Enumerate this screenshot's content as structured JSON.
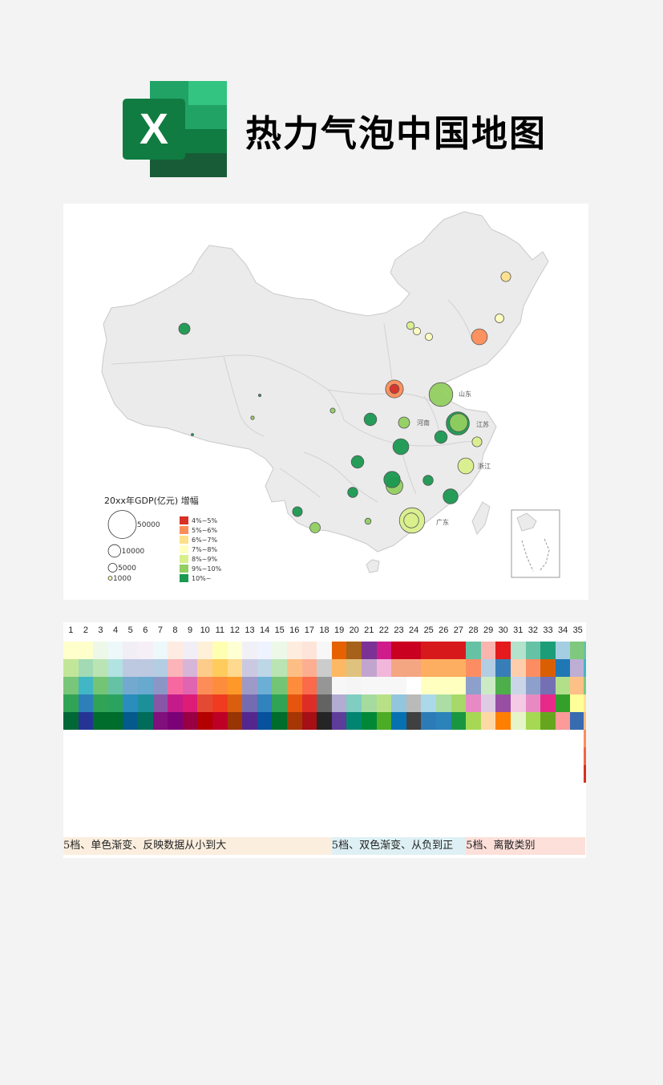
{
  "header": {
    "logo_letter": "X",
    "title": "热力气泡中国地图"
  },
  "map": {
    "legend_title": "20xx年GDP(亿元) 增幅",
    "size_legend": [
      {
        "label": "50000",
        "value": 50000
      },
      {
        "label": "10000",
        "value": 10000
      },
      {
        "label": "5000",
        "value": 5000
      },
      {
        "label": "1000",
        "value": 1000
      }
    ],
    "color_legend": [
      {
        "label": "4%~5%",
        "color": "#d73027"
      },
      {
        "label": "5%~6%",
        "color": "#fc8d59"
      },
      {
        "label": "6%~7%",
        "color": "#fee08b"
      },
      {
        "label": "7%~8%",
        "color": "#ffffbf"
      },
      {
        "label": "8%~9%",
        "color": "#d9ef8b"
      },
      {
        "label": "9%~10%",
        "color": "#91cf60"
      },
      {
        "label": "10%~",
        "color": "#1a9850"
      }
    ],
    "province_labels": [
      "山东",
      "江苏",
      "河南",
      "浙江",
      "广东"
    ],
    "bubbles": [
      {
        "bin": 1,
        "gdp": 20000
      },
      {
        "bin": 1,
        "gdp": 16000
      },
      {
        "bin": 2,
        "gdp": 6000
      },
      {
        "bin": 3,
        "gdp": 3500
      },
      {
        "bin": 3,
        "gdp": 3500
      },
      {
        "bin": 3,
        "gdp": 5000
      },
      {
        "bin": 4,
        "gdp": 3700
      },
      {
        "bin": 4,
        "gdp": 16000
      },
      {
        "bin": 4,
        "gdp": 14000
      },
      {
        "bin": 4,
        "gdp": 6000
      },
      {
        "bin": 4,
        "gdp": 41000
      },
      {
        "bin": 5,
        "gdp": 36000
      },
      {
        "bin": 5,
        "gdp": 8000
      },
      {
        "bin": 5,
        "gdp": 21000
      },
      {
        "bin": 5,
        "gdp": 18000
      },
      {
        "bin": 5,
        "gdp": 1600
      },
      {
        "bin": 5,
        "gdp": 800
      },
      {
        "bin": 5,
        "gdp": 7000
      },
      {
        "bin": 5,
        "gdp": 2400
      },
      {
        "bin": 6,
        "gdp": 34000
      },
      {
        "bin": 6,
        "gdp": 10000
      },
      {
        "bin": 6,
        "gdp": 16000
      },
      {
        "bin": 6,
        "gdp": 17000
      },
      {
        "bin": 6,
        "gdp": 14000
      },
      {
        "bin": 6,
        "gdp": 10000
      },
      {
        "bin": 6,
        "gdp": 6500
      },
      {
        "bin": 6,
        "gdp": 10000
      },
      {
        "bin": 6,
        "gdp": 400
      },
      {
        "bin": 0,
        "gdp": 5500
      },
      {
        "bin": 6,
        "gdp": 8000
      },
      {
        "bin": 6,
        "gdp": 6500
      },
      {
        "bin": 6,
        "gdp": 6000
      },
      {
        "bin": 6,
        "gdp": 200
      }
    ]
  },
  "palette": {
    "column_numbers": [
      "1",
      "2",
      "3",
      "4",
      "5",
      "6",
      "7",
      "8",
      "9",
      "10",
      "11",
      "12",
      "13",
      "14",
      "15",
      "16",
      "17",
      "18",
      "19",
      "20",
      "21",
      "22",
      "23",
      "24",
      "25",
      "26",
      "27",
      "28",
      "29",
      "30",
      "31",
      "32",
      "33",
      "34",
      "35"
    ],
    "columns": [
      [
        "#ffffcc",
        "#c2e699",
        "#78c679",
        "#31a354",
        "#006837"
      ],
      [
        "#ffffcc",
        "#a1dab4",
        "#41b6c4",
        "#2c7fb8",
        "#253494"
      ],
      [
        "#edf8e9",
        "#bae4b3",
        "#74c476",
        "#31a354",
        "#006d2c"
      ],
      [
        "#edf8fb",
        "#b2e2e2",
        "#66c2a4",
        "#2ca25f",
        "#006d2c"
      ],
      [
        "#f1eef6",
        "#bdc9e1",
        "#74a9cf",
        "#2b8cbe",
        "#045a8d"
      ],
      [
        "#f6eff7",
        "#bdc9e1",
        "#67a9cf",
        "#1c9099",
        "#016c59"
      ],
      [
        "#edf8fb",
        "#b3cde3",
        "#8c96c6",
        "#8856a7",
        "#810f7c"
      ],
      [
        "#feebe2",
        "#fbb4b9",
        "#f768a1",
        "#c51b8a",
        "#7a0177"
      ],
      [
        "#f1eef6",
        "#d7b5d8",
        "#df65b0",
        "#dd1c77",
        "#980043"
      ],
      [
        "#fef0d9",
        "#fdcc8a",
        "#fc8d59",
        "#e34a33",
        "#b30000"
      ],
      [
        "#ffffb2",
        "#fecc5c",
        "#fd8d3c",
        "#f03b20",
        "#bd0026"
      ],
      [
        "#ffffd4",
        "#fed98e",
        "#fe9929",
        "#d95f0e",
        "#993404"
      ],
      [
        "#f2f0f7",
        "#cbc9e2",
        "#9e9ac8",
        "#756bb1",
        "#54278f"
      ],
      [
        "#eff3ff",
        "#bdd7e7",
        "#6baed6",
        "#3182bd",
        "#08519c"
      ],
      [
        "#edf8e9",
        "#bae4b3",
        "#74c476",
        "#31a354",
        "#006d2c"
      ],
      [
        "#feedde",
        "#fdbe85",
        "#fd8d3c",
        "#e6550d",
        "#a63603"
      ],
      [
        "#fee5d9",
        "#fcae91",
        "#fb6a4a",
        "#de2d26",
        "#a50f15"
      ],
      [
        "#f7f7f7",
        "#cccccc",
        "#969696",
        "#636363",
        "#252525"
      ],
      [
        "#e66101",
        "#fdb863",
        "#f7f7f7",
        "#b2abd2",
        "#5e3c99"
      ],
      [
        "#a6611a",
        "#dfc27d",
        "#f5f5f5",
        "#80cdc1",
        "#018571"
      ],
      [
        "#7b3294",
        "#c2a5cf",
        "#f7f7f7",
        "#a6dba0",
        "#008837"
      ],
      [
        "#d01c8b",
        "#f1b6da",
        "#f7f7f7",
        "#b8e186",
        "#4dac26"
      ],
      [
        "#ca0020",
        "#f4a582",
        "#f7f7f7",
        "#92c5de",
        "#0571b0"
      ],
      [
        "#ca0020",
        "#f4a582",
        "#ffffff",
        "#bababa",
        "#404040"
      ],
      [
        "#d7191c",
        "#fdae61",
        "#ffffbf",
        "#abd9e9",
        "#2c7bb6"
      ],
      [
        "#d7191c",
        "#fdae61",
        "#ffffbf",
        "#abdda4",
        "#2b83ba"
      ],
      [
        "#d7191c",
        "#fdae61",
        "#ffffbf",
        "#a6d96a",
        "#1a9641"
      ],
      [
        "#66c2a5",
        "#fc8d62",
        "#8da0cb",
        "#e78ac3",
        "#a6d854"
      ],
      [
        "#fbb4ae",
        "#b3cde3",
        "#ccebc5",
        "#decbe4",
        "#fed9a6"
      ],
      [
        "#e41a1c",
        "#377eb8",
        "#4daf4a",
        "#984ea3",
        "#ff7f00"
      ],
      [
        "#b3e2cd",
        "#fdcdac",
        "#cbd5e8",
        "#f4cae4",
        "#e6f5c9"
      ],
      [
        "#66c2a5",
        "#fc8d62",
        "#8da0cb",
        "#e78ac3",
        "#a6d854"
      ],
      [
        "#1b9e77",
        "#d95f02",
        "#7570b3",
        "#e7298a",
        "#66a61e"
      ],
      [
        "#a6cee3",
        "#1f78b4",
        "#b2df8a",
        "#33a02c",
        "#fb9a99"
      ],
      [
        "#7fc97f",
        "#beaed4",
        "#fdc086",
        "#ffff99",
        "#386cb0"
      ]
    ],
    "edge_strip": [
      "#66c2a4",
      "#41b6c4",
      "#7fc97f",
      "#fee391",
      "#fdbb84",
      "#fc8d59",
      "#ef6548",
      "#d7301f"
    ],
    "groups": [
      {
        "label": "5档、单色渐变、反映数据从小到大",
        "color": "#fbeedf",
        "start": 0,
        "span": 18
      },
      {
        "label": "5档、双色渐变、从负到正",
        "color": "#def0f4",
        "start": 18,
        "span": 9
      },
      {
        "label": "5档、离散类别",
        "color": "#fde0d9",
        "start": 27,
        "span": 8
      }
    ]
  }
}
